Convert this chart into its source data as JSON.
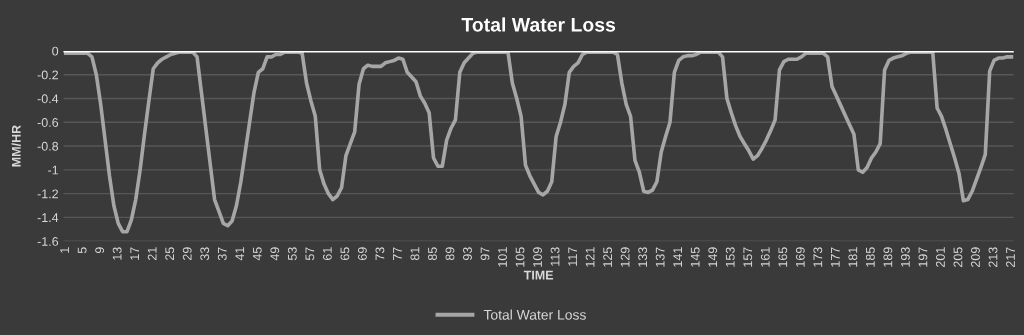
{
  "chart_data": {
    "type": "line",
    "title": "Total Water Loss",
    "xlabel": "TIME",
    "ylabel": "MM/HR",
    "categories": [
      "1",
      null,
      null,
      null,
      "5",
      null,
      null,
      null,
      "9",
      null,
      null,
      null,
      "13",
      null,
      null,
      null,
      "17",
      null,
      null,
      null,
      "21",
      null,
      null,
      null,
      "25",
      null,
      null,
      null,
      "29",
      null,
      null,
      null,
      "33",
      null,
      null,
      null,
      "37",
      null,
      null,
      null,
      "41",
      null,
      null,
      null,
      "45",
      null,
      null,
      null,
      "49",
      null,
      null,
      null,
      "53",
      null,
      null,
      null,
      "57",
      null,
      null,
      null,
      "61",
      null,
      null,
      null,
      "65",
      null,
      null,
      null,
      "69",
      null,
      null,
      null,
      "73",
      null,
      null,
      null,
      "77",
      null,
      null,
      null,
      "81",
      null,
      null,
      null,
      "85",
      null,
      null,
      null,
      "89",
      null,
      null,
      null,
      "93",
      null,
      null,
      null,
      "97",
      null,
      null,
      null,
      "101",
      null,
      null,
      null,
      "105",
      null,
      null,
      null,
      "109",
      null,
      null,
      null,
      "113",
      null,
      null,
      null,
      "117",
      null,
      null,
      null,
      "121",
      null,
      null,
      null,
      "125",
      null,
      null,
      null,
      "129",
      null,
      null,
      null,
      "133",
      null,
      null,
      null,
      "137",
      null,
      null,
      null,
      "141",
      null,
      null,
      null,
      "145",
      null,
      null,
      null,
      "149",
      null,
      null,
      null,
      "153",
      null,
      null,
      null,
      "157",
      null,
      null,
      null,
      "161",
      null,
      null,
      null,
      "165",
      null,
      null,
      null,
      "169",
      null,
      null,
      null,
      "173",
      null,
      null,
      null,
      "177",
      null,
      null,
      null,
      "181",
      null,
      null,
      null,
      "185",
      null,
      null,
      null,
      "189",
      null,
      null,
      null,
      "193",
      null,
      null,
      null,
      "197",
      null,
      null,
      null,
      "201",
      null,
      null,
      null,
      "205",
      null,
      null,
      null,
      "209",
      null,
      null,
      null,
      "213",
      null,
      null,
      null,
      "217"
    ],
    "series": [
      {
        "name": "Total Water Loss",
        "color": "#a6a6a6",
        "values": [
          -0.02,
          -0.02,
          -0.02,
          -0.02,
          -0.02,
          -0.02,
          -0.05,
          -0.2,
          -0.45,
          -0.75,
          -1.05,
          -1.3,
          -1.45,
          -1.52,
          -1.52,
          -1.42,
          -1.25,
          -1.0,
          -0.7,
          -0.42,
          -0.15,
          -0.1,
          -0.07,
          -0.05,
          -0.03,
          -0.02,
          -0.01,
          -0.01,
          -0.01,
          -0.01,
          -0.05,
          -0.35,
          -0.65,
          -0.95,
          -1.25,
          -1.35,
          -1.45,
          -1.47,
          -1.43,
          -1.3,
          -1.1,
          -0.85,
          -0.6,
          -0.35,
          -0.18,
          -0.15,
          -0.05,
          -0.05,
          -0.03,
          -0.03,
          -0.01,
          -0.01,
          -0.01,
          -0.01,
          -0.02,
          -0.27,
          -0.42,
          -0.55,
          -1.0,
          -1.12,
          -1.2,
          -1.25,
          -1.22,
          -1.15,
          -0.88,
          -0.78,
          -0.68,
          -0.28,
          -0.15,
          -0.12,
          -0.13,
          -0.13,
          -0.13,
          -0.1,
          -0.09,
          -0.08,
          -0.06,
          -0.07,
          -0.18,
          -0.22,
          -0.26,
          -0.38,
          -0.44,
          -0.52,
          -0.9,
          -0.97,
          -0.97,
          -0.75,
          -0.65,
          -0.58,
          -0.18,
          -0.1,
          -0.06,
          -0.02,
          -0.01,
          -0.01,
          -0.01,
          -0.01,
          -0.01,
          -0.01,
          -0.01,
          -0.01,
          -0.27,
          -0.4,
          -0.55,
          -0.96,
          -1.05,
          -1.12,
          -1.19,
          -1.21,
          -1.18,
          -1.1,
          -0.72,
          -0.6,
          -0.45,
          -0.18,
          -0.13,
          -0.1,
          -0.03,
          -0.01,
          -0.01,
          -0.01,
          -0.01,
          -0.01,
          -0.01,
          -0.01,
          -0.03,
          -0.27,
          -0.45,
          -0.55,
          -0.92,
          -1.02,
          -1.18,
          -1.19,
          -1.17,
          -1.1,
          -0.85,
          -0.72,
          -0.6,
          -0.18,
          -0.08,
          -0.05,
          -0.04,
          -0.04,
          -0.03,
          -0.01,
          -0.01,
          -0.01,
          -0.01,
          -0.01,
          -0.05,
          -0.4,
          -0.52,
          -0.63,
          -0.72,
          -0.78,
          -0.84,
          -0.91,
          -0.88,
          -0.82,
          -0.75,
          -0.67,
          -0.58,
          -0.16,
          -0.09,
          -0.07,
          -0.07,
          -0.07,
          -0.05,
          -0.02,
          -0.02,
          -0.02,
          -0.02,
          -0.02,
          -0.05,
          -0.3,
          -0.38,
          -0.46,
          -0.54,
          -0.62,
          -0.7,
          -1.0,
          -1.02,
          -0.98,
          -0.9,
          -0.85,
          -0.78,
          -0.16,
          -0.08,
          -0.06,
          -0.05,
          -0.04,
          -0.02,
          -0.01,
          -0.01,
          -0.01,
          -0.01,
          -0.01,
          -0.01,
          -0.48,
          -0.55,
          -0.66,
          -0.78,
          -0.9,
          -1.03,
          -1.26,
          -1.25,
          -1.18,
          -1.08,
          -0.98,
          -0.87,
          -0.17,
          -0.08,
          -0.06,
          -0.06,
          -0.05,
          -0.05
        ]
      }
    ],
    "ylim": [
      -1.6,
      0
    ],
    "yticks": [
      0,
      -0.2,
      -0.4,
      -0.6,
      -0.8,
      -1,
      -1.2,
      -1.4,
      -1.6
    ],
    "grid": "y",
    "legend": "bottom"
  }
}
